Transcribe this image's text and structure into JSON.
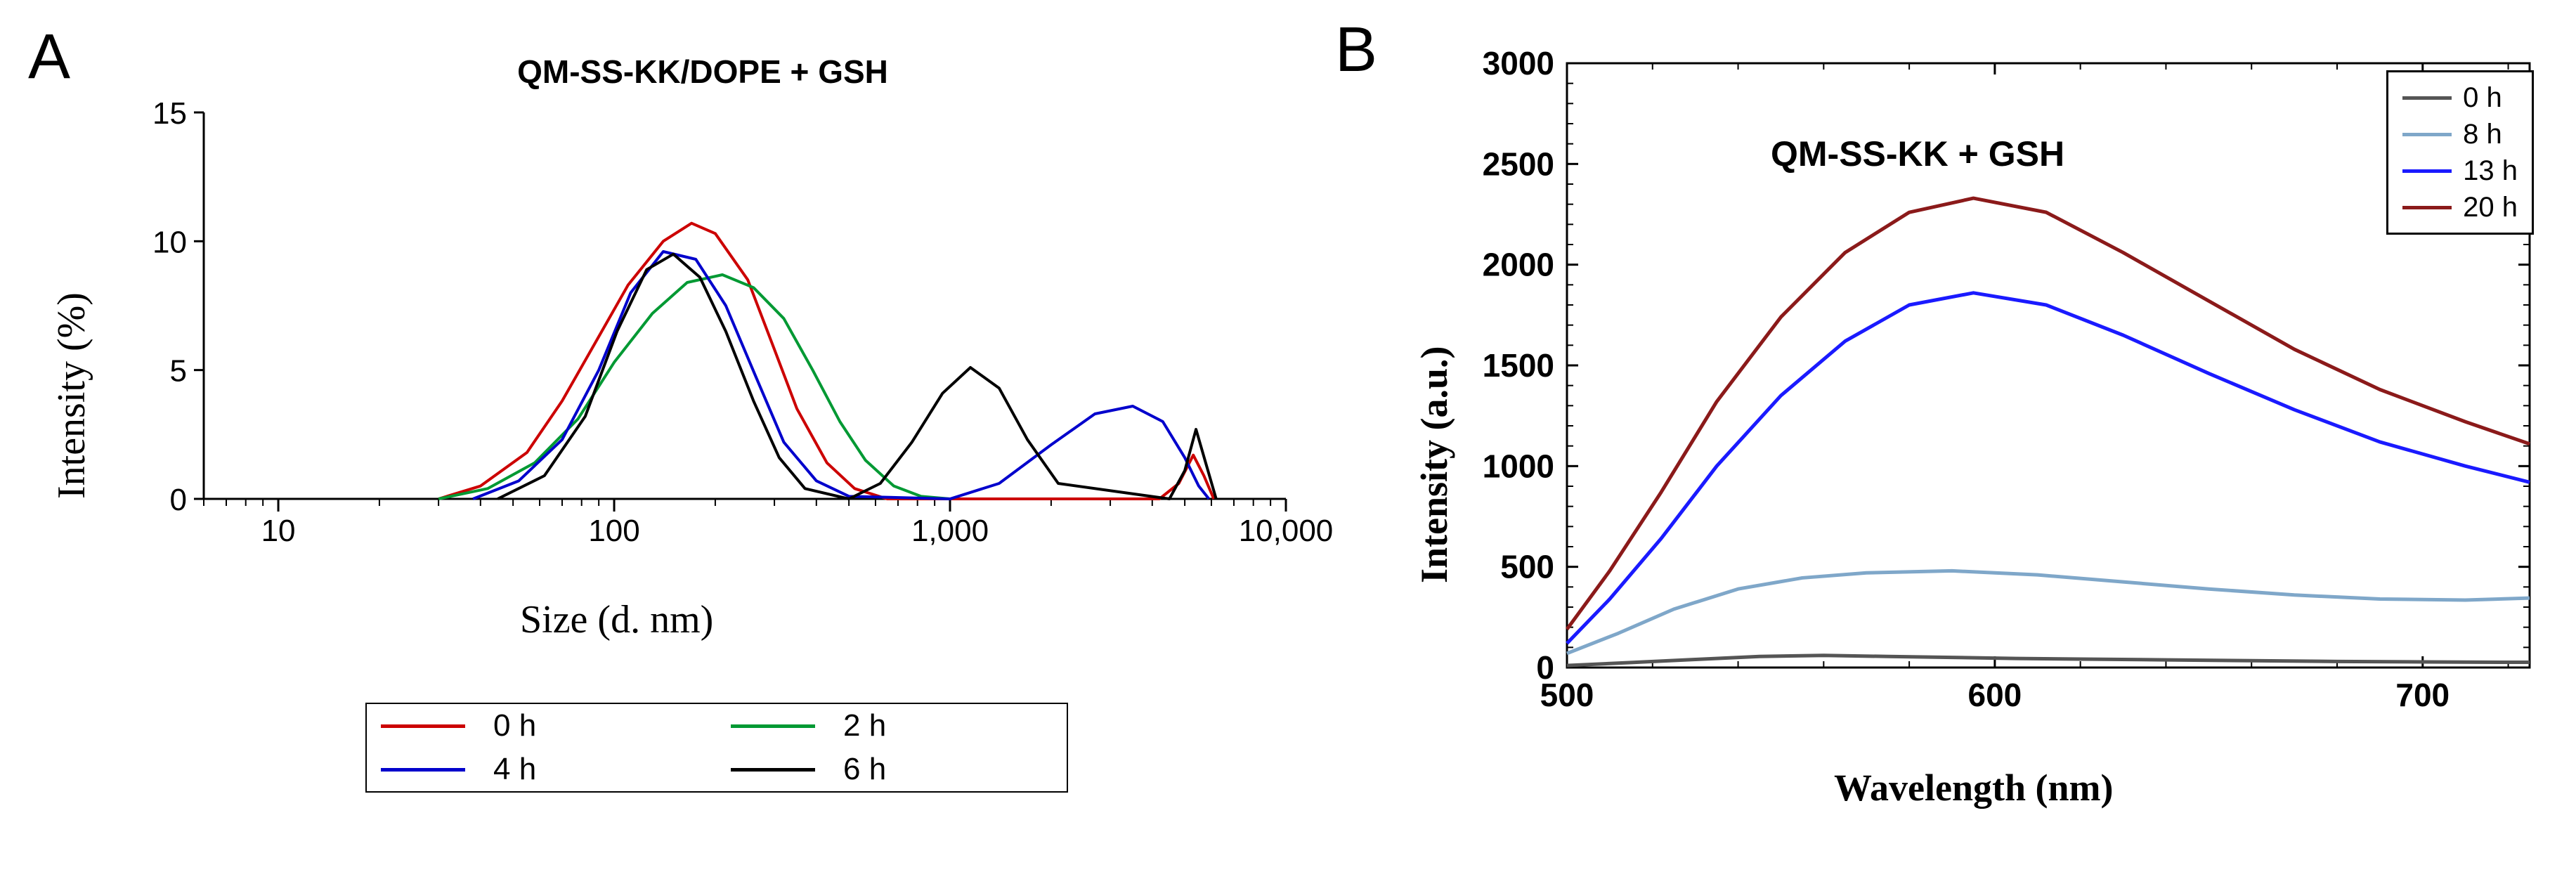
{
  "panelA": {
    "label": "A",
    "title": "QM-SS-KK/DOPE + GSH",
    "title_fontsize": 46,
    "title_fontweight": "bold",
    "xlabel": "Size (d. nm)",
    "ylabel": "Intensity  (%)",
    "xlabel_fontsize": 56,
    "ylabel_fontsize": 56,
    "tick_fontsize": 44,
    "type": "line",
    "x_scale": "log",
    "xlim": [
      6,
      10000
    ],
    "ylim": [
      0,
      15
    ],
    "xticks": [
      10,
      100,
      1000,
      10000
    ],
    "xtick_labels": [
      "10",
      "100",
      "1,000",
      "10,000"
    ],
    "yticks": [
      0,
      5,
      10,
      15
    ],
    "minor_xticks": [
      6,
      7,
      8,
      9,
      20,
      30,
      40,
      50,
      60,
      70,
      80,
      90,
      200,
      300,
      400,
      500,
      600,
      700,
      800,
      900,
      2000,
      3000,
      4000,
      5000,
      6000,
      7000,
      8000,
      9000
    ],
    "line_width": 4,
    "background_color": "#ffffff",
    "axis_color": "#000000",
    "series": [
      {
        "name": "0 h",
        "color": "#cc0000",
        "x": [
          30,
          40,
          55,
          70,
          90,
          110,
          140,
          170,
          200,
          250,
          300,
          350,
          430,
          520,
          650,
          4200,
          4800,
          5300,
          5700,
          6100
        ],
        "y": [
          0,
          0.5,
          1.8,
          3.8,
          6.3,
          8.3,
          10.0,
          10.7,
          10.3,
          8.5,
          5.8,
          3.5,
          1.4,
          0.4,
          0,
          0,
          0.6,
          1.7,
          0.9,
          0
        ]
      },
      {
        "name": "2 h",
        "color": "#009933",
        "x": [
          30,
          42,
          58,
          78,
          100,
          130,
          165,
          210,
          260,
          320,
          390,
          470,
          560,
          680,
          820,
          1000
        ],
        "y": [
          0,
          0.4,
          1.4,
          3.1,
          5.3,
          7.2,
          8.4,
          8.7,
          8.2,
          7.0,
          5.0,
          3.0,
          1.5,
          0.5,
          0.1,
          0
        ]
      },
      {
        "name": "4 h",
        "color": "#0000cc",
        "x": [
          38,
          52,
          70,
          90,
          112,
          140,
          175,
          215,
          265,
          320,
          400,
          500,
          1000,
          1400,
          2000,
          2700,
          3500,
          4300,
          5000,
          5500,
          5900
        ],
        "y": [
          0,
          0.7,
          2.3,
          5.0,
          8.0,
          9.6,
          9.3,
          7.5,
          4.7,
          2.2,
          0.7,
          0.1,
          0,
          0.6,
          2.1,
          3.3,
          3.6,
          3.0,
          1.6,
          0.5,
          0
        ]
      },
      {
        "name": "6 h",
        "color": "#000000",
        "x": [
          45,
          62,
          82,
          102,
          125,
          150,
          180,
          215,
          260,
          310,
          370,
          500,
          620,
          770,
          950,
          1150,
          1400,
          1700,
          2100,
          4500,
          5000,
          5400,
          5800,
          6200
        ],
        "y": [
          0,
          0.9,
          3.2,
          6.5,
          8.9,
          9.5,
          8.6,
          6.5,
          3.8,
          1.6,
          0.4,
          0,
          0.6,
          2.2,
          4.1,
          5.1,
          4.3,
          2.3,
          0.6,
          0,
          1.1,
          2.7,
          1.3,
          0
        ]
      }
    ],
    "legend": {
      "items": [
        {
          "label": "0 h",
          "color": "#cc0000"
        },
        {
          "label": "2 h",
          "color": "#009933"
        },
        {
          "label": "4 h",
          "color": "#0000cc"
        },
        {
          "label": "6 h",
          "color": "#000000"
        }
      ],
      "fontsize": 44,
      "border_color": "#000000",
      "columns": 2
    }
  },
  "panelB": {
    "label": "B",
    "title": "QM-SS-KK + GSH",
    "title_fontsize": 50,
    "title_fontweight": "bold",
    "xlabel": "Wavelength (nm)",
    "ylabel": "Intensity (a.u.)",
    "xlabel_fontsize": 54,
    "ylabel_fontsize": 54,
    "tick_fontsize": 46,
    "type": "line",
    "x_scale": "linear",
    "xlim": [
      500,
      725
    ],
    "ylim": [
      0,
      3000
    ],
    "xticks": [
      500,
      600,
      700
    ],
    "yticks": [
      0,
      500,
      1000,
      1500,
      2000,
      2500,
      3000
    ],
    "minor_xticks": [
      520,
      540,
      560,
      580,
      620,
      640,
      660,
      680,
      720
    ],
    "minor_yticks": [
      100,
      200,
      300,
      400,
      600,
      700,
      800,
      900,
      1100,
      1200,
      1300,
      1400,
      1600,
      1700,
      1800,
      1900,
      2100,
      2200,
      2300,
      2400,
      2600,
      2700,
      2800,
      2900
    ],
    "line_width": 5,
    "background_color": "#ffffff",
    "axis_color": "#000000",
    "frame": true,
    "series": [
      {
        "name": "0 h",
        "color": "#555555",
        "x": [
          500,
          515,
          530,
          545,
          560,
          575,
          590,
          605,
          620,
          640,
          660,
          680,
          700,
          720,
          725
        ],
        "y": [
          10,
          25,
          40,
          55,
          60,
          55,
          50,
          45,
          42,
          38,
          34,
          30,
          28,
          26,
          26
        ]
      },
      {
        "name": "8 h",
        "color": "#7fa7c9",
        "x": [
          500,
          512,
          525,
          540,
          555,
          570,
          590,
          610,
          630,
          650,
          670,
          690,
          710,
          725
        ],
        "y": [
          70,
          170,
          290,
          390,
          445,
          470,
          480,
          460,
          425,
          390,
          360,
          340,
          335,
          345
        ]
      },
      {
        "name": "13 h",
        "color": "#1a1aff",
        "x": [
          500,
          510,
          522,
          535,
          550,
          565,
          580,
          595,
          612,
          630,
          650,
          670,
          690,
          710,
          725
        ],
        "y": [
          120,
          340,
          640,
          1000,
          1350,
          1620,
          1800,
          1860,
          1800,
          1650,
          1460,
          1280,
          1120,
          1000,
          920
        ]
      },
      {
        "name": "20 h",
        "color": "#8b1a1a",
        "x": [
          500,
          510,
          522,
          535,
          550,
          565,
          580,
          595,
          612,
          630,
          650,
          670,
          690,
          710,
          725
        ],
        "y": [
          190,
          480,
          870,
          1320,
          1740,
          2060,
          2260,
          2330,
          2260,
          2060,
          1820,
          1580,
          1380,
          1220,
          1110
        ]
      }
    ],
    "legend": {
      "items": [
        {
          "label": "0 h",
          "color": "#555555"
        },
        {
          "label": "8 h",
          "color": "#7fa7c9"
        },
        {
          "label": "13 h",
          "color": "#1a1aff"
        },
        {
          "label": "20 h",
          "color": "#8b1a1a"
        }
      ],
      "fontsize": 40,
      "border_color": "#000000",
      "position": "upper-right"
    }
  }
}
